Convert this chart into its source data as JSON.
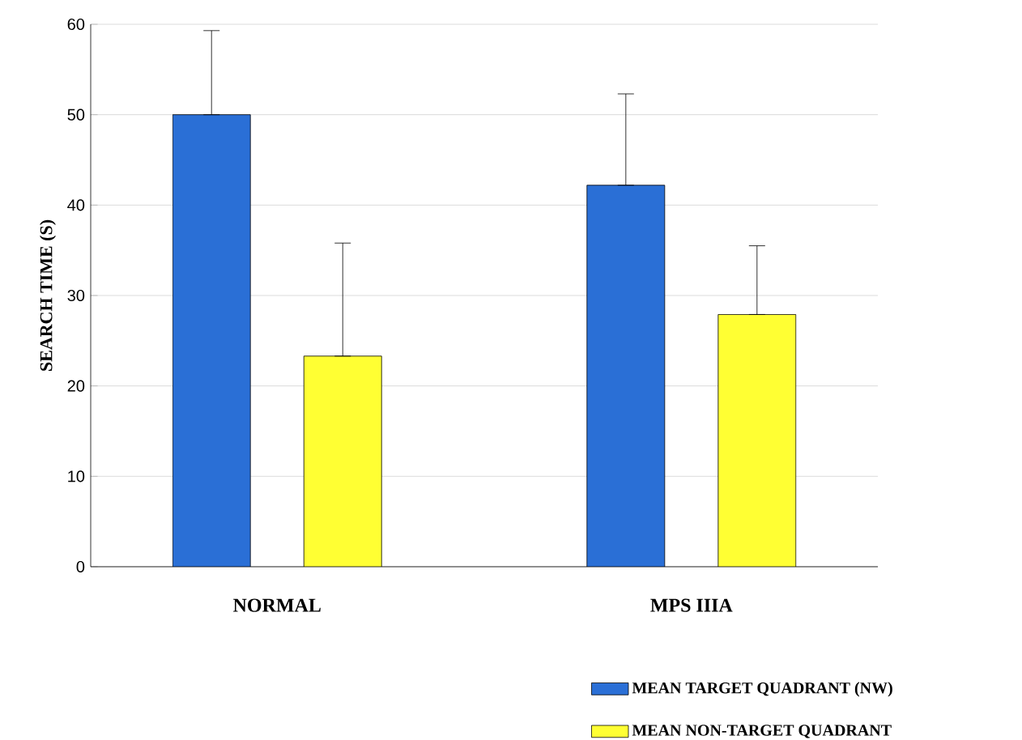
{
  "chart_data": {
    "type": "bar",
    "categories": [
      "NORMAL",
      "MPS IIIA"
    ],
    "ylabel": "SEARCH TIME (S)",
    "series": [
      {
        "name": "MEAN TARGET QUADRANT (NW)",
        "color": "#2a6fd6",
        "values": [
          50,
          42.2
        ],
        "errors": [
          [
            50,
            59.3
          ],
          [
            42.2,
            52.3
          ]
        ]
      },
      {
        "name": "MEAN NON-TARGET QUADRANT",
        "color": "#ffff33",
        "values": [
          23.3,
          27.9
        ],
        "errors": [
          [
            23.3,
            35.8
          ],
          [
            27.9,
            35.5
          ]
        ]
      }
    ],
    "ylim": [
      0,
      60
    ],
    "yticks": [
      0,
      10,
      20,
      30,
      40,
      50,
      60
    ],
    "grid": "y",
    "legend": "bottom right"
  }
}
